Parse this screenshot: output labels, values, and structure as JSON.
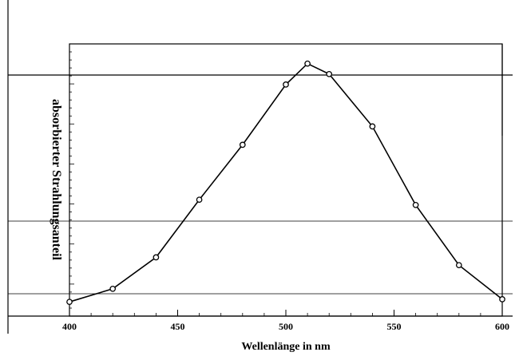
{
  "chart_data": {
    "type": "line",
    "xlabel": "Wellenlänge in nm",
    "ylabel": "absorbierter Strahlungsanteil",
    "xlim": [
      400,
      600
    ],
    "ylim": [
      0,
      1
    ],
    "x_ticks": [
      "400",
      "450",
      "500",
      "550",
      "600"
    ],
    "series": [
      {
        "x": [
          400,
          420,
          440,
          460,
          480,
          500,
          510,
          520,
          540,
          560,
          580,
          600
        ],
        "y": [
          0.03,
          0.08,
          0.2,
          0.42,
          0.63,
          0.86,
          0.94,
          0.9,
          0.7,
          0.4,
          0.17,
          0.04
        ]
      }
    ],
    "grid": false
  }
}
